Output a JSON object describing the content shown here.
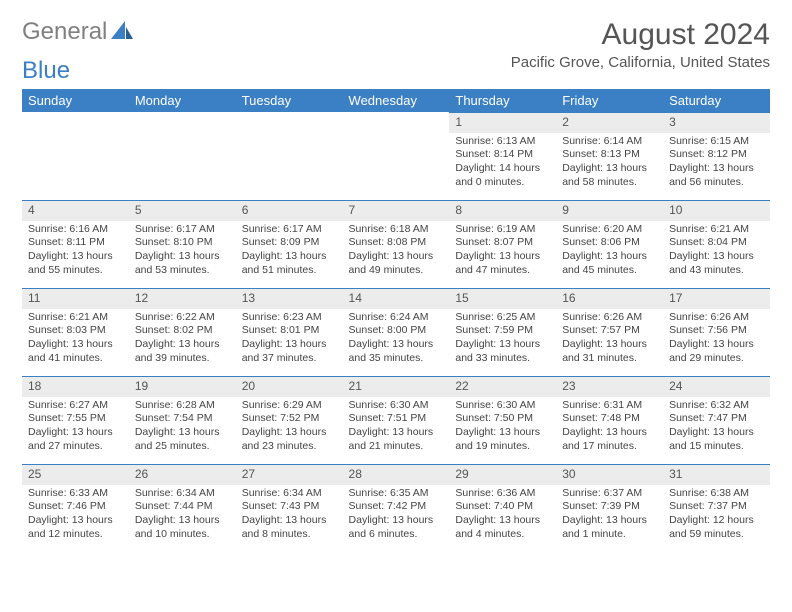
{
  "logo": {
    "part1": "General",
    "part2": "Blue"
  },
  "title": "August 2024",
  "location": "Pacific Grove, California, United States",
  "day_headers": [
    "Sunday",
    "Monday",
    "Tuesday",
    "Wednesday",
    "Thursday",
    "Friday",
    "Saturday"
  ],
  "colors": {
    "header_bg": "#3b7fc4",
    "header_fg": "#ffffff",
    "daynum_bg": "#ececec",
    "border": "#3b7fc4",
    "text": "#444444"
  },
  "weeks": [
    [
      null,
      null,
      null,
      null,
      {
        "n": "1",
        "sr": "6:13 AM",
        "ss": "8:14 PM",
        "dl": "14 hours and 0 minutes."
      },
      {
        "n": "2",
        "sr": "6:14 AM",
        "ss": "8:13 PM",
        "dl": "13 hours and 58 minutes."
      },
      {
        "n": "3",
        "sr": "6:15 AM",
        "ss": "8:12 PM",
        "dl": "13 hours and 56 minutes."
      }
    ],
    [
      {
        "n": "4",
        "sr": "6:16 AM",
        "ss": "8:11 PM",
        "dl": "13 hours and 55 minutes."
      },
      {
        "n": "5",
        "sr": "6:17 AM",
        "ss": "8:10 PM",
        "dl": "13 hours and 53 minutes."
      },
      {
        "n": "6",
        "sr": "6:17 AM",
        "ss": "8:09 PM",
        "dl": "13 hours and 51 minutes."
      },
      {
        "n": "7",
        "sr": "6:18 AM",
        "ss": "8:08 PM",
        "dl": "13 hours and 49 minutes."
      },
      {
        "n": "8",
        "sr": "6:19 AM",
        "ss": "8:07 PM",
        "dl": "13 hours and 47 minutes."
      },
      {
        "n": "9",
        "sr": "6:20 AM",
        "ss": "8:06 PM",
        "dl": "13 hours and 45 minutes."
      },
      {
        "n": "10",
        "sr": "6:21 AM",
        "ss": "8:04 PM",
        "dl": "13 hours and 43 minutes."
      }
    ],
    [
      {
        "n": "11",
        "sr": "6:21 AM",
        "ss": "8:03 PM",
        "dl": "13 hours and 41 minutes."
      },
      {
        "n": "12",
        "sr": "6:22 AM",
        "ss": "8:02 PM",
        "dl": "13 hours and 39 minutes."
      },
      {
        "n": "13",
        "sr": "6:23 AM",
        "ss": "8:01 PM",
        "dl": "13 hours and 37 minutes."
      },
      {
        "n": "14",
        "sr": "6:24 AM",
        "ss": "8:00 PM",
        "dl": "13 hours and 35 minutes."
      },
      {
        "n": "15",
        "sr": "6:25 AM",
        "ss": "7:59 PM",
        "dl": "13 hours and 33 minutes."
      },
      {
        "n": "16",
        "sr": "6:26 AM",
        "ss": "7:57 PM",
        "dl": "13 hours and 31 minutes."
      },
      {
        "n": "17",
        "sr": "6:26 AM",
        "ss": "7:56 PM",
        "dl": "13 hours and 29 minutes."
      }
    ],
    [
      {
        "n": "18",
        "sr": "6:27 AM",
        "ss": "7:55 PM",
        "dl": "13 hours and 27 minutes."
      },
      {
        "n": "19",
        "sr": "6:28 AM",
        "ss": "7:54 PM",
        "dl": "13 hours and 25 minutes."
      },
      {
        "n": "20",
        "sr": "6:29 AM",
        "ss": "7:52 PM",
        "dl": "13 hours and 23 minutes."
      },
      {
        "n": "21",
        "sr": "6:30 AM",
        "ss": "7:51 PM",
        "dl": "13 hours and 21 minutes."
      },
      {
        "n": "22",
        "sr": "6:30 AM",
        "ss": "7:50 PM",
        "dl": "13 hours and 19 minutes."
      },
      {
        "n": "23",
        "sr": "6:31 AM",
        "ss": "7:48 PM",
        "dl": "13 hours and 17 minutes."
      },
      {
        "n": "24",
        "sr": "6:32 AM",
        "ss": "7:47 PM",
        "dl": "13 hours and 15 minutes."
      }
    ],
    [
      {
        "n": "25",
        "sr": "6:33 AM",
        "ss": "7:46 PM",
        "dl": "13 hours and 12 minutes."
      },
      {
        "n": "26",
        "sr": "6:34 AM",
        "ss": "7:44 PM",
        "dl": "13 hours and 10 minutes."
      },
      {
        "n": "27",
        "sr": "6:34 AM",
        "ss": "7:43 PM",
        "dl": "13 hours and 8 minutes."
      },
      {
        "n": "28",
        "sr": "6:35 AM",
        "ss": "7:42 PM",
        "dl": "13 hours and 6 minutes."
      },
      {
        "n": "29",
        "sr": "6:36 AM",
        "ss": "7:40 PM",
        "dl": "13 hours and 4 minutes."
      },
      {
        "n": "30",
        "sr": "6:37 AM",
        "ss": "7:39 PM",
        "dl": "13 hours and 1 minute."
      },
      {
        "n": "31",
        "sr": "6:38 AM",
        "ss": "7:37 PM",
        "dl": "12 hours and 59 minutes."
      }
    ]
  ],
  "labels": {
    "sunrise": "Sunrise:",
    "sunset": "Sunset:",
    "daylight": "Daylight:"
  }
}
